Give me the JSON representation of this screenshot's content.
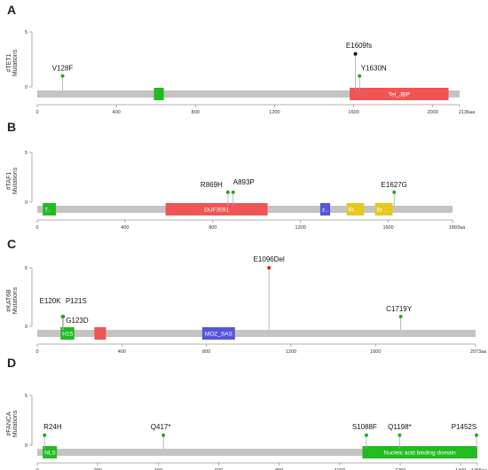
{
  "panels": [
    {
      "letter": "A",
      "gene": "#TET1",
      "ylabel_unit": "Mutations",
      "length": 2136,
      "length_label": "2136aa",
      "ymax": 5,
      "yticks": [
        "5",
        "0"
      ],
      "xticks": [
        0,
        400,
        800,
        1200,
        1600,
        2000
      ],
      "domains": [
        {
          "start": 590,
          "end": 640,
          "label": "",
          "color": "#22bb22"
        },
        {
          "start": 1580,
          "end": 2080,
          "label": "Tet_JBP",
          "color": "#f05555"
        }
      ],
      "mutations": [
        {
          "pos": 128,
          "count": 1,
          "label": "V128F",
          "color": "#22aa22"
        },
        {
          "pos": 1609,
          "count": 3,
          "label": "E1609fs",
          "color": "#111111"
        },
        {
          "pos": 1630,
          "count": 1,
          "label": "Y1630N",
          "color": "#22aa22"
        }
      ]
    },
    {
      "letter": "B",
      "gene": "#TAF1",
      "ylabel_unit": "Mutations",
      "length": 1893,
      "length_label": "1893aa",
      "ymax": 5,
      "yticks": [
        "5",
        "0"
      ],
      "xticks": [
        0,
        400,
        800,
        1200,
        1600
      ],
      "domains": [
        {
          "start": 25,
          "end": 85,
          "label": "T..",
          "color": "#22bb22"
        },
        {
          "start": 585,
          "end": 1050,
          "label": "DUF3591",
          "color": "#f05555"
        },
        {
          "start": 1290,
          "end": 1335,
          "label": "z..",
          "color": "#5555dd"
        },
        {
          "start": 1410,
          "end": 1490,
          "label": "Br..",
          "color": "#e6c820"
        },
        {
          "start": 1540,
          "end": 1620,
          "label": "Br..",
          "color": "#e6c820"
        }
      ],
      "mutations": [
        {
          "pos": 869,
          "count": 1,
          "label": "R869H",
          "color": "#22aa22"
        },
        {
          "pos": 893,
          "count": 1,
          "label": "A893P",
          "color": "#22aa22"
        },
        {
          "pos": 1627,
          "count": 1,
          "label": "E1627G",
          "color": "#22aa22"
        }
      ]
    },
    {
      "letter": "C",
      "gene": "#KAT6B",
      "ylabel_unit": "Mutations",
      "length": 2073,
      "length_label": "2073aa",
      "ymax": 6,
      "yticks": [
        "6",
        "0"
      ],
      "xticks": [
        0,
        400,
        800,
        1200,
        1600
      ],
      "domains": [
        {
          "start": 110,
          "end": 175,
          "label": "H15",
          "color": "#22bb22"
        },
        {
          "start": 270,
          "end": 325,
          "label": "",
          "color": "#f05555"
        },
        {
          "start": 780,
          "end": 935,
          "label": "MOZ_SAS",
          "color": "#5555dd"
        }
      ],
      "mutations": [
        {
          "pos": 120,
          "count": 1,
          "label": "E120K",
          "color": "#22aa22"
        },
        {
          "pos": 121,
          "count": 1,
          "label": "P121S",
          "color": "#22aa22"
        },
        {
          "pos": 123,
          "count": 1,
          "label": "G123D",
          "color": "#22aa22"
        },
        {
          "pos": 1096,
          "count": 6,
          "label": "E1096Del",
          "color": "#cc2222"
        },
        {
          "pos": 1719,
          "count": 1,
          "label": "C1719Y",
          "color": "#22aa22"
        }
      ]
    },
    {
      "letter": "D",
      "gene": "#FANCA",
      "ylabel_unit": "Mutations",
      "length": 1455,
      "length_label": "1455aa",
      "ymax": 5,
      "yticks": [
        "5",
        "0"
      ],
      "xticks": [
        0,
        200,
        400,
        600,
        800,
        1000,
        1200,
        1400
      ],
      "domains": [
        {
          "start": 18,
          "end": 65,
          "label": "NLS",
          "color": "#22bb22"
        },
        {
          "start": 1075,
          "end": 1455,
          "label": "Nucleic acid binding domain",
          "color": "#22bb22"
        }
      ],
      "mutations": [
        {
          "pos": 24,
          "count": 1,
          "label": "R24H",
          "color": "#22aa22"
        },
        {
          "pos": 417,
          "count": 1,
          "label": "Q417*",
          "color": "#22aa22"
        },
        {
          "pos": 1088,
          "count": 1,
          "label": "S1088F",
          "color": "#22aa22"
        },
        {
          "pos": 1198,
          "count": 1,
          "label": "Q1198*",
          "color": "#22aa22"
        },
        {
          "pos": 1452,
          "count": 1,
          "label": "P1452S",
          "color": "#22aa22"
        }
      ]
    }
  ]
}
